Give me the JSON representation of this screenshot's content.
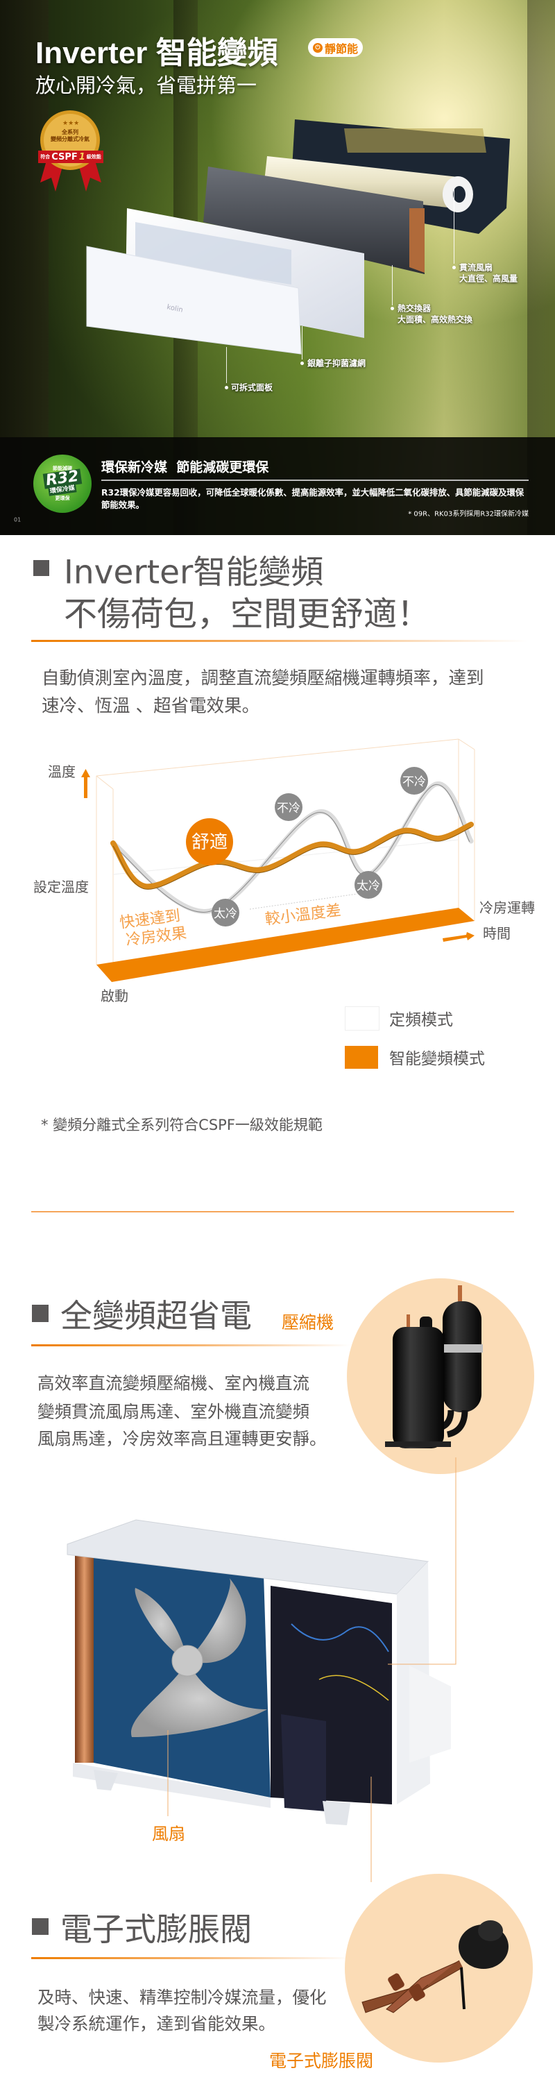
{
  "hero": {
    "title": "Inverter 智能變頻",
    "badge": "靜節能",
    "subtitle": "放心開冷氣，省電拼第一",
    "medal": {
      "line1": "全系列",
      "line2": "變頻分離式冷氣",
      "ribbon_prefix": "符合",
      "ribbon_main": "CSPF",
      "ribbon_grade": "1",
      "ribbon_suffix": "級效能"
    },
    "brand": "kolin",
    "callouts": [
      {
        "title": "貫流風扇",
        "desc": "大直徑、高風量"
      },
      {
        "title": "熱交換器",
        "desc": "大面積、高效熱交換"
      },
      {
        "title": "銀離子抑菌濾網"
      },
      {
        "title": "可拆式面板"
      }
    ]
  },
  "r32": {
    "badge_top": "節能減碳",
    "badge_main": "R32",
    "badge_sub": "環保冷媒",
    "badge_bottom": "更環保",
    "heading": "環保新冷媒  節能減碳更環保",
    "body": "R32環保冷媒更容易回收，可降低全球暖化係數、提高能源效率，並大幅降低二氧化碳排放、具節能減碳及環保節能效果。",
    "footnote": "* 09R、RK03系列採用R32環保新冷媒",
    "page": "01"
  },
  "inverter": {
    "heading_line1": "Inverter智能變頻",
    "heading_line2": "不傷荷包，空間更舒適！",
    "para_line1": "自動偵測室內溫度，調整直流變頻壓縮機運轉頻率，達到",
    "para_line2": "速冷、恆溫 、超省電效果。",
    "footnote": "* 變頻分離式全系列符合CSPF一級效能規範"
  },
  "diagram": {
    "y_label": "溫度",
    "set_temp": "設定溫度",
    "start": "啟動",
    "cooling": "冷房運轉",
    "time": "時間",
    "comfort": "舒適",
    "not_cold": "不冷",
    "too_cold": "太冷",
    "fast_line1": "快速達到",
    "fast_line2": "冷房效果",
    "small_diff": "較小溫度差",
    "legend": [
      {
        "label": "定頻模式",
        "color": "#ffffff"
      },
      {
        "label": "智能變頻模式",
        "color": "#f08300"
      }
    ]
  },
  "compressor": {
    "heading": "全變頻超省電",
    "tag": "壓縮機",
    "para_lines": [
      "高效率直流變頻壓縮機、室內機直流",
      "變頻貫流風扇馬達、室外機直流變頻",
      "風扇馬達，冷房效率高且運轉更安靜。"
    ],
    "fan_label": "風扇"
  },
  "valve": {
    "heading": "電子式膨脹閥",
    "para_lines": [
      "及時、快速、精準控制冷媒流量，優化",
      "製冷系統運作，達到省能效果。"
    ],
    "label": "電子式膨脹閥"
  },
  "colors": {
    "accent": "#ee7d00",
    "text": "#595757",
    "peach": "#fbdcb6",
    "r32_green": "#3a9a24"
  }
}
